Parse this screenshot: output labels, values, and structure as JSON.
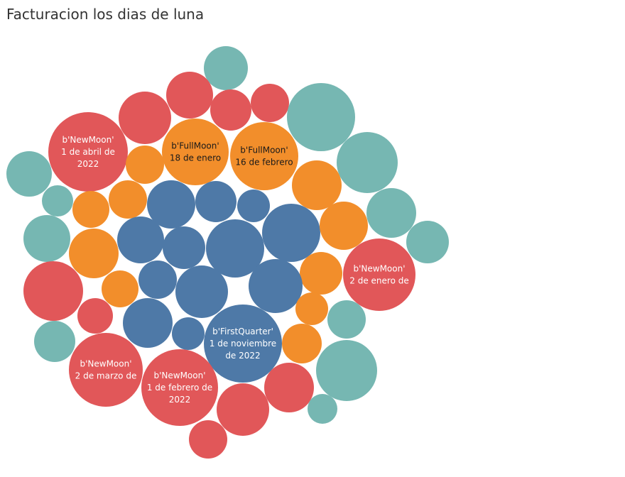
{
  "chart_data": {
    "type": "bubble",
    "title": "Facturacion los dias de luna",
    "colors": {
      "NewMoon": "#e15759",
      "FullMoon": "#f28e2b",
      "FirstQuarter": "#4e79a7",
      "Other": "#76b7b2"
    },
    "label_colors": {
      "NewMoon": "#ffffff",
      "FullMoon": "#1a1a1a",
      "FirstQuarter": "#ffffff",
      "Other": "#ffffff"
    },
    "labels": {
      "b_newmoon_abril": [
        "b'NewMoon'",
        "1 de abril de",
        "2022"
      ],
      "b_fullmoon_enero": [
        "b'FullMoon'",
        "18 de enero"
      ],
      "b_fullmoon_febrero": [
        "b'FullMoon'",
        "16 de febrero"
      ],
      "b_newmoon_enero": [
        "b'NewMoon'",
        "2 de enero de"
      ],
      "b_firstquarter_nov": [
        "b'FirstQuarter'",
        "1 de noviembre",
        "de 2022"
      ],
      "b_newmoon_marzo": [
        "b'NewMoon'",
        "2 de marzo de"
      ],
      "b_newmoon_febrero": [
        "b'NewMoon'",
        "1 de febrero de",
        "2022"
      ]
    }
  }
}
